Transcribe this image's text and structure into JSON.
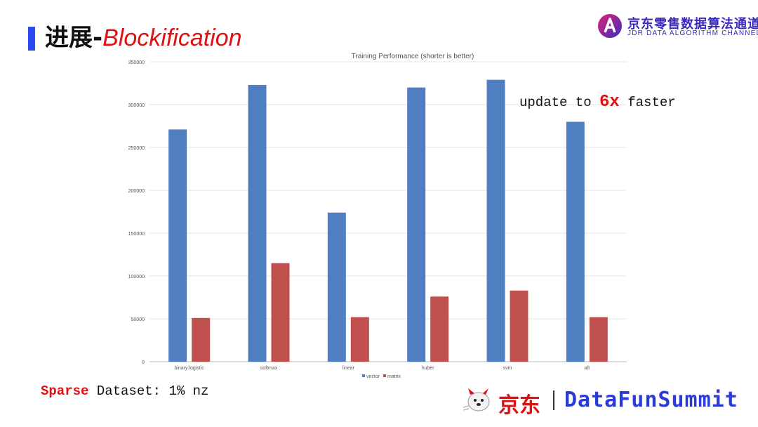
{
  "slide": {
    "title_zh": "进展-",
    "title_en": "Blockification"
  },
  "brand": {
    "name_zh": "京东零售数据算法通道",
    "name_en": "JDR DATA ALGORITHM CHANNEL"
  },
  "annotation": {
    "prefix": "update to ",
    "highlight": "6x",
    "suffix": " faster"
  },
  "footnote": {
    "highlight": "Sparse",
    "rest": " Dataset: 1% nz"
  },
  "footer": {
    "jd_label": "京东",
    "summit_label": "DataFunSummit"
  },
  "colors": {
    "accent_red": "#e01010",
    "title_bar": "#2b4bf2",
    "vector": "#4f7fc0",
    "matrix": "#c0504d"
  },
  "chart_data": {
    "type": "bar",
    "title": "Training Performance (shorter is better)",
    "categories": [
      "binary:logistic",
      "softmax",
      "linear",
      "huber",
      "svm",
      "aft"
    ],
    "series": [
      {
        "name": "vector",
        "color": "#4f7fc0",
        "values": [
          271000,
          323000,
          174000,
          320000,
          329000,
          280000
        ]
      },
      {
        "name": "matrix",
        "color": "#c0504d",
        "values": [
          51000,
          115000,
          52000,
          76000,
          83000,
          52000
        ]
      }
    ],
    "ylim": [
      0,
      350000
    ],
    "yticks": [
      0,
      50000,
      100000,
      150000,
      200000,
      250000,
      300000,
      350000
    ],
    "grid": true,
    "legend": "bottom"
  }
}
